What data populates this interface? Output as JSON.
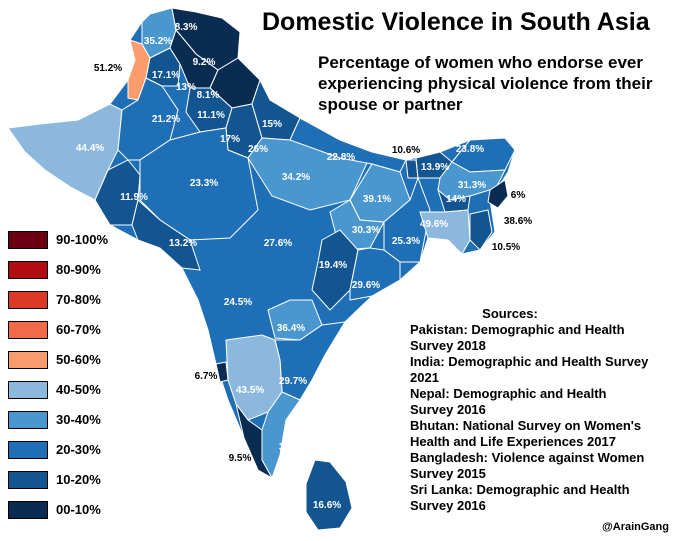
{
  "title": "Domestic Violence in South Asia",
  "subtitle": "Percentage of women who endorse ever experiencing physical violence from their spouse or partner",
  "legend": [
    {
      "label": "90-100%",
      "color": "#6b0010"
    },
    {
      "label": "80-90%",
      "color": "#b10d11"
    },
    {
      "label": "70-80%",
      "color": "#dd3a26"
    },
    {
      "label": "60-70%",
      "color": "#f26a48"
    },
    {
      "label": "50-60%",
      "color": "#f99d6d"
    },
    {
      "label": "40-50%",
      "color": "#8db8de"
    },
    {
      "label": "30-40%",
      "color": "#4a97cf"
    },
    {
      "label": "20-30%",
      "color": "#1f6fb6"
    },
    {
      "label": "10-20%",
      "color": "#125591"
    },
    {
      "label": "00-10%",
      "color": "#0b2c52"
    }
  ],
  "regions": [
    {
      "label": "8.3%",
      "color": "#0b2c52"
    },
    {
      "label": "35.2%",
      "color": "#4a97cf"
    },
    {
      "label": "51.2%",
      "color": "#f99d6d"
    },
    {
      "label": "9.2%",
      "color": "#0b2c52"
    },
    {
      "label": "17.1%",
      "color": "#125591"
    },
    {
      "label": "13%",
      "color": "#125591"
    },
    {
      "label": "8.1%",
      "color": "#0b2c52"
    },
    {
      "label": "44.4%",
      "color": "#8db8de"
    },
    {
      "label": "21.2%",
      "color": "#1f6fb6"
    },
    {
      "label": "11.1%",
      "color": "#125591"
    },
    {
      "label": "15%",
      "color": "#125591"
    },
    {
      "label": "17%",
      "color": "#125591"
    },
    {
      "label": "26%",
      "color": "#1f6fb6"
    },
    {
      "label": "22.8%",
      "color": "#1f6fb6"
    },
    {
      "label": "10.6%",
      "color": "#125591"
    },
    {
      "label": "23.8%",
      "color": "#1f6fb6"
    },
    {
      "label": "13.9%",
      "color": "#125591"
    },
    {
      "label": "31.3%",
      "color": "#4a97cf"
    },
    {
      "label": "6%",
      "color": "#0b2c52"
    },
    {
      "label": "14%",
      "color": "#125591"
    },
    {
      "label": "38.6%",
      "color": "#4a97cf"
    },
    {
      "label": "11.9%",
      "color": "#125591"
    },
    {
      "label": "23.3%",
      "color": "#1f6fb6"
    },
    {
      "label": "34.2%",
      "color": "#4a97cf"
    },
    {
      "label": "39.1%",
      "color": "#4a97cf"
    },
    {
      "label": "49.6%",
      "color": "#8db8de"
    },
    {
      "label": "25.3%",
      "color": "#1f6fb6"
    },
    {
      "label": "30.3%",
      "color": "#4a97cf"
    },
    {
      "label": "10.5%",
      "color": "#125591"
    },
    {
      "label": "13.2%",
      "color": "#125591"
    },
    {
      "label": "27.6%",
      "color": "#1f6fb6"
    },
    {
      "label": "19.4%",
      "color": "#125591"
    },
    {
      "label": "29.6%",
      "color": "#1f6fb6"
    },
    {
      "label": "24.5%",
      "color": "#1f6fb6"
    },
    {
      "label": "36.4%",
      "color": "#4a97cf"
    },
    {
      "label": "6.7%",
      "color": "#0b2c52"
    },
    {
      "label": "43.5%",
      "color": "#8db8de"
    },
    {
      "label": "29.7%",
      "color": "#1f6fb6"
    },
    {
      "label": "37.8%",
      "color": "#4a97cf"
    },
    {
      "label": "9.5%",
      "color": "#0b2c52"
    },
    {
      "label": "16.6%",
      "color": "#125591"
    }
  ],
  "sources": {
    "heading": "Sources:",
    "lines": [
      "Pakistan: Demographic and Health",
      "Survey 2018",
      "India: Demographic and Health Survey",
      "2021",
      "Nepal: Demographic and Health",
      "Survey 2016",
      "Bhutan: National Survey on Women's",
      "Health and Life Experiences 2017",
      "Bangladesh: Violence against Women",
      "Survey 2015",
      "Sri Lanka: Demographic and Health",
      "Survey 2016"
    ]
  },
  "credit": "@ArainGang"
}
